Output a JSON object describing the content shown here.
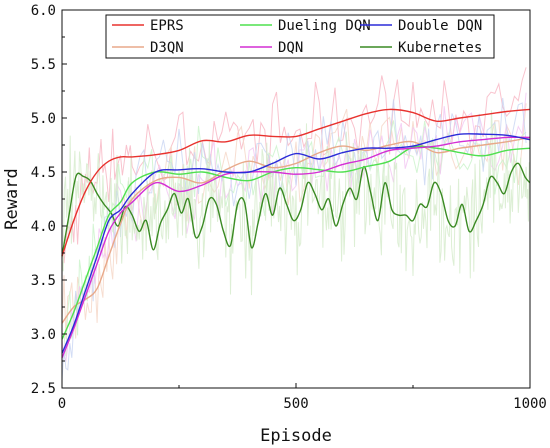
{
  "chart_data": {
    "type": "line",
    "xlabel": "Episode",
    "ylabel": "Reward",
    "xlim": [
      0,
      1000
    ],
    "ylim": [
      2.5,
      6.0
    ],
    "xticks": [
      0,
      500,
      1000
    ],
    "yticks": [
      2.5,
      3.0,
      3.5,
      4.0,
      4.5,
      5.0,
      5.5,
      6.0
    ],
    "grid": false,
    "legend_position": "top-center",
    "series": [
      {
        "name": "EPRS",
        "color": "#e8322e",
        "band_color": "#f7b4c2",
        "x": [
          0,
          25,
          50,
          75,
          100,
          125,
          150,
          200,
          250,
          300,
          350,
          400,
          450,
          500,
          550,
          600,
          650,
          700,
          750,
          800,
          850,
          900,
          950,
          1000
        ],
        "y": [
          3.72,
          4.05,
          4.32,
          4.5,
          4.6,
          4.64,
          4.64,
          4.66,
          4.7,
          4.79,
          4.78,
          4.84,
          4.83,
          4.83,
          4.9,
          4.97,
          5.04,
          5.08,
          5.05,
          4.97,
          5.0,
          5.03,
          5.06,
          5.08
        ]
      },
      {
        "name": "D3QN",
        "color": "#e8a98a",
        "band_color": "#f5d6c6",
        "x": [
          0,
          25,
          50,
          75,
          100,
          125,
          150,
          200,
          250,
          300,
          350,
          400,
          450,
          500,
          550,
          600,
          650,
          700,
          750,
          800,
          850,
          900,
          950,
          1000
        ],
        "y": [
          3.1,
          3.25,
          3.32,
          3.42,
          3.72,
          4.02,
          4.25,
          4.42,
          4.45,
          4.4,
          4.52,
          4.6,
          4.54,
          4.58,
          4.68,
          4.74,
          4.7,
          4.75,
          4.78,
          4.68,
          4.72,
          4.75,
          4.78,
          4.82
        ]
      },
      {
        "name": "Dueling DQN",
        "color": "#4fe04f",
        "band_color": "#c9f2c9",
        "x": [
          0,
          25,
          50,
          75,
          100,
          125,
          150,
          200,
          250,
          300,
          350,
          400,
          450,
          500,
          550,
          600,
          650,
          700,
          750,
          800,
          850,
          900,
          950,
          1000
        ],
        "y": [
          2.95,
          3.2,
          3.5,
          3.8,
          4.1,
          4.22,
          4.4,
          4.5,
          4.48,
          4.5,
          4.45,
          4.42,
          4.5,
          4.54,
          4.52,
          4.5,
          4.55,
          4.6,
          4.73,
          4.72,
          4.68,
          4.65,
          4.7,
          4.72
        ]
      },
      {
        "name": "DQN",
        "color": "#d42fd4",
        "band_color": "#f2c6f2",
        "x": [
          0,
          25,
          50,
          75,
          100,
          125,
          150,
          200,
          250,
          300,
          350,
          400,
          450,
          500,
          550,
          600,
          650,
          700,
          750,
          800,
          850,
          900,
          950,
          1000
        ],
        "y": [
          2.78,
          3.05,
          3.35,
          3.65,
          3.95,
          4.12,
          4.22,
          4.4,
          4.32,
          4.38,
          4.48,
          4.5,
          4.5,
          4.48,
          4.5,
          4.57,
          4.62,
          4.7,
          4.72,
          4.74,
          4.78,
          4.8,
          4.82,
          4.82
        ]
      },
      {
        "name": "Double DQN",
        "color": "#2b2bd8",
        "band_color": "#c8d4f2",
        "x": [
          0,
          25,
          50,
          75,
          100,
          125,
          150,
          200,
          250,
          300,
          350,
          400,
          450,
          500,
          550,
          600,
          650,
          700,
          750,
          800,
          850,
          900,
          950,
          1000
        ],
        "y": [
          2.82,
          3.08,
          3.4,
          3.72,
          4.05,
          4.15,
          4.3,
          4.5,
          4.52,
          4.53,
          4.5,
          4.5,
          4.58,
          4.67,
          4.62,
          4.68,
          4.72,
          4.72,
          4.74,
          4.8,
          4.85,
          4.85,
          4.84,
          4.8
        ]
      },
      {
        "name": "Kubernetes",
        "color": "#3a8a23",
        "band_color": "#d5ebcb",
        "x": [
          0,
          15,
          30,
          45,
          60,
          75,
          90,
          105,
          120,
          135,
          150,
          165,
          180,
          195,
          210,
          225,
          240,
          255,
          270,
          285,
          300,
          315,
          330,
          345,
          360,
          375,
          390,
          405,
          420,
          435,
          450,
          465,
          480,
          495,
          510,
          525,
          540,
          555,
          570,
          585,
          600,
          615,
          630,
          645,
          660,
          675,
          690,
          705,
          720,
          735,
          750,
          765,
          780,
          795,
          810,
          825,
          840,
          855,
          870,
          885,
          900,
          915,
          930,
          945,
          960,
          975,
          990,
          1000
        ],
        "y": [
          3.72,
          4.1,
          4.46,
          4.46,
          4.42,
          4.3,
          4.2,
          4.12,
          4.0,
          4.18,
          4.1,
          3.95,
          4.05,
          3.78,
          4.02,
          4.15,
          4.3,
          4.12,
          4.25,
          3.9,
          4.0,
          4.25,
          4.2,
          3.95,
          3.82,
          4.2,
          4.22,
          3.8,
          4.05,
          4.3,
          4.1,
          4.35,
          4.2,
          4.05,
          4.15,
          4.4,
          4.3,
          4.15,
          4.25,
          4.0,
          4.2,
          4.35,
          4.25,
          4.55,
          4.3,
          4.05,
          4.4,
          4.15,
          4.1,
          4.1,
          4.05,
          4.2,
          4.18,
          4.4,
          4.3,
          4.05,
          4.0,
          4.2,
          3.95,
          4.05,
          4.2,
          4.45,
          4.4,
          4.3,
          4.5,
          4.58,
          4.45,
          4.4
        ]
      }
    ]
  }
}
